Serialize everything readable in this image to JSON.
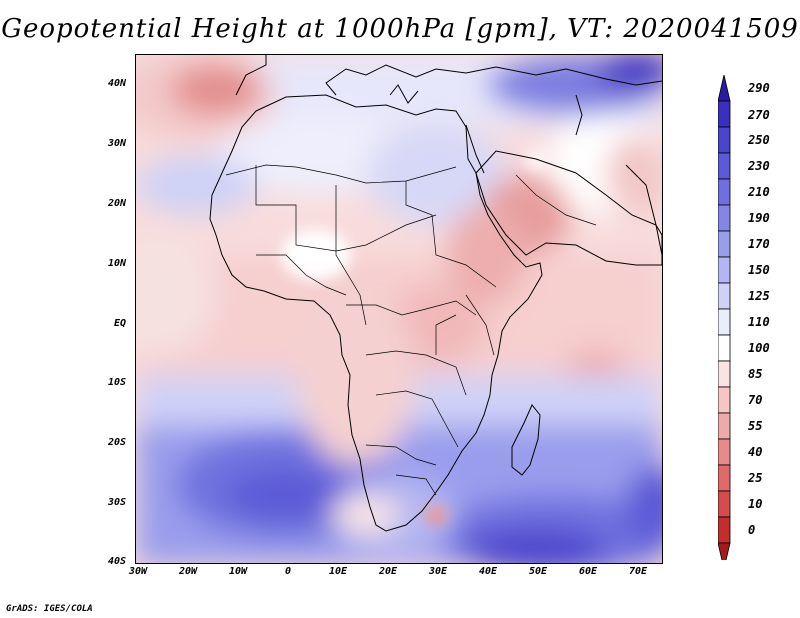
{
  "title": "Geopotential Height at 1000hPa [gpm], VT: 2020041509",
  "footer": "GrADS: IGES/COLA",
  "map": {
    "y_labels": [
      "40N",
      "30N",
      "20N",
      "10N",
      "EQ",
      "10S",
      "20S",
      "30S",
      "40S"
    ],
    "x_labels": [
      "30W",
      "20W",
      "10W",
      "0",
      "10E",
      "20E",
      "30E",
      "40E",
      "50E",
      "60E",
      "70E"
    ]
  },
  "colorbar": {
    "labels": [
      "290",
      "270",
      "250",
      "230",
      "210",
      "190",
      "170",
      "150",
      "125",
      "110",
      "100",
      "85",
      "70",
      "55",
      "40",
      "25",
      "10",
      "0"
    ],
    "colors": [
      "#2a1aa8",
      "#3a2fbf",
      "#4b44cc",
      "#5c5ad6",
      "#6f70df",
      "#8486e6",
      "#9a9dec",
      "#b3b6f2",
      "#cfd1f7",
      "#ecedfb",
      "#ffffff",
      "#fbe3e3",
      "#f6c6c6",
      "#f0a9a9",
      "#e88a8a",
      "#e06a6a",
      "#d44c4c",
      "#c22d2d",
      "#a61a1a"
    ]
  },
  "colors": {
    "land_outline": "#000000",
    "background": "#ffffff"
  }
}
